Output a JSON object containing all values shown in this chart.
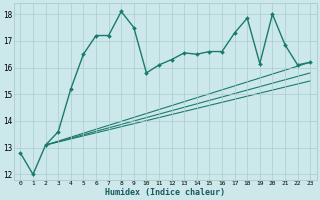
{
  "bg_color": "#cce8ea",
  "grid_color": "#aacccc",
  "line_color": "#1a7a6e",
  "xlabel": "Humidex (Indice chaleur)",
  "xlim": [
    -0.5,
    23.5
  ],
  "ylim": [
    11.8,
    18.4
  ],
  "yticks": [
    12,
    13,
    14,
    15,
    16,
    17,
    18
  ],
  "xtick_labels": [
    "0",
    "1",
    "2",
    "3",
    "4",
    "5",
    "6",
    "7",
    "8",
    "9",
    "10",
    "11",
    "12",
    "13",
    "14",
    "15",
    "16",
    "17",
    "18",
    "19",
    "20",
    "21",
    "22",
    "23"
  ],
  "main_line": {
    "x": [
      0,
      1,
      2,
      3,
      4,
      5,
      6,
      7,
      8,
      9,
      10,
      11,
      12,
      13,
      14,
      15,
      16,
      17,
      18,
      19,
      20,
      21,
      22,
      23
    ],
    "y": [
      12.8,
      12.0,
      13.1,
      13.6,
      15.2,
      16.5,
      17.2,
      17.2,
      18.1,
      17.5,
      15.8,
      16.1,
      16.3,
      16.55,
      16.5,
      16.6,
      16.6,
      17.3,
      17.85,
      16.15,
      18.0,
      16.85,
      16.1,
      16.2
    ],
    "marker": "D",
    "markersize": 2.0,
    "linewidth": 1.0
  },
  "trend_lines": [
    {
      "x": [
        2,
        23
      ],
      "y": [
        13.1,
        16.2
      ]
    },
    {
      "x": [
        2,
        23
      ],
      "y": [
        13.1,
        15.8
      ]
    },
    {
      "x": [
        2,
        23
      ],
      "y": [
        13.1,
        15.5
      ]
    }
  ]
}
